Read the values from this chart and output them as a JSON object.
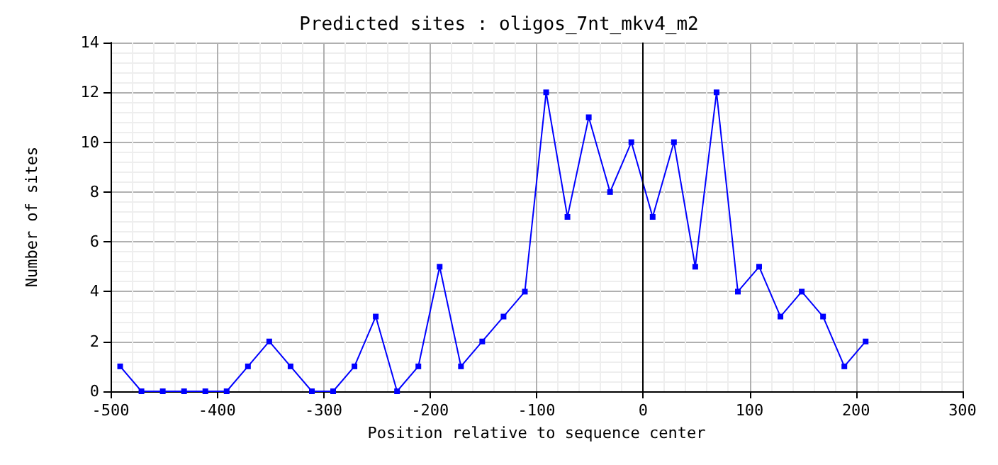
{
  "chart_data": {
    "type": "line",
    "title": "Predicted sites : oligos_7nt_mkv4_m2",
    "xlabel": "Position relative to sequence center",
    "ylabel": "Number of sites",
    "x": [
      -491,
      -471,
      -451,
      -431,
      -411,
      -391,
      -371,
      -351,
      -331,
      -311,
      -291,
      -271,
      -251,
      -231,
      -211,
      -191,
      -171,
      -151,
      -131,
      -111,
      -91,
      -71,
      -51,
      -31,
      -11,
      9,
      29,
      49,
      69,
      89,
      109,
      129,
      149,
      169,
      189,
      209
    ],
    "series": [
      {
        "color": "#0000ff",
        "values": [
          1,
          0,
          0,
          0,
          0,
          0,
          1,
          2,
          1,
          0,
          0,
          1,
          3,
          0,
          1,
          5,
          1,
          2,
          3,
          4,
          12,
          7,
          11,
          8,
          10,
          7,
          10,
          5,
          12,
          4,
          5,
          3,
          4,
          3,
          1,
          2
        ]
      }
    ],
    "xlim": [
      -500,
      300
    ],
    "xticks": [
      -500,
      -400,
      -300,
      -200,
      -100,
      0,
      100,
      200,
      300
    ],
    "ylim": [
      0,
      14
    ],
    "yticks": [
      0,
      2,
      4,
      6,
      8,
      10,
      12,
      14
    ],
    "ref_lines": [
      {
        "axis": "x",
        "value": 0,
        "color": "#000000"
      }
    ],
    "grid": true,
    "marker": "square",
    "line_style": "solid"
  }
}
